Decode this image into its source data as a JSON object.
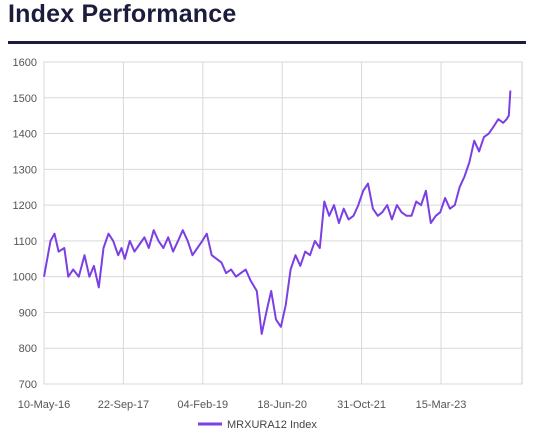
{
  "header": {
    "title": "Index Performance"
  },
  "chart_data": {
    "type": "line",
    "ylim": [
      700,
      1600
    ],
    "y_ticks": [
      "1600",
      "1500",
      "1400",
      "1300",
      "1200",
      "1100",
      "1000",
      "900",
      "800",
      "700"
    ],
    "x_ticks": [
      "10-May-16",
      "22-Sep-17",
      "04-Feb-19",
      "18-Jun-20",
      "31-Oct-21",
      "15-Mar-23"
    ],
    "grid": true,
    "legend_position": "bottom",
    "accent_color": "#7b3fe4",
    "series": [
      {
        "name": "MRXURA12 Index",
        "color": "#7b3fe4",
        "x": [
          "10-May-16",
          "20-Jun-16",
          "15-Jul-16",
          "10-Aug-16",
          "15-Sep-16",
          "10-Oct-16",
          "10-Nov-16",
          "15-Dec-16",
          "20-Jan-17",
          "20-Feb-17",
          "20-Mar-17",
          "20-Apr-17",
          "20-May-17",
          "20-Jun-17",
          "20-Jul-17",
          "20-Aug-17",
          "10-Sep-17",
          "01-Oct-17",
          "01-Nov-17",
          "01-Dec-17",
          "01-Jan-18",
          "01-Feb-18",
          "01-Mar-18",
          "01-Apr-18",
          "01-May-18",
          "01-Jun-18",
          "01-Jul-18",
          "01-Aug-18",
          "01-Sep-18",
          "01-Oct-18",
          "01-Nov-18",
          "01-Dec-18",
          "01-Jan-19",
          "01-Feb-19",
          "01-Mar-19",
          "01-Apr-19",
          "01-May-19",
          "01-Jun-19",
          "01-Jul-19",
          "01-Aug-19",
          "01-Sep-19",
          "01-Oct-19",
          "01-Nov-19",
          "01-Dec-19",
          "10-Jan-20",
          "10-Feb-20",
          "10-Mar-20",
          "20-Mar-20",
          "10-Apr-20",
          "10-May-20",
          "10-Jun-20",
          "10-Jul-20",
          "10-Aug-20",
          "10-Sep-20",
          "10-Oct-20",
          "10-Nov-20",
          "10-Dec-20",
          "10-Jan-21",
          "10-Feb-21",
          "10-Mar-21",
          "10-Apr-21",
          "10-May-21",
          "10-Jun-21",
          "10-Jul-21",
          "10-Aug-21",
          "10-Sep-21",
          "10-Oct-21",
          "10-Nov-21",
          "10-Dec-21",
          "10-Jan-22",
          "10-Feb-22",
          "10-Mar-22",
          "10-Apr-22",
          "10-May-22",
          "10-Jun-22",
          "10-Jul-22",
          "10-Aug-22",
          "10-Sep-22",
          "10-Oct-22",
          "10-Nov-22",
          "10-Dec-22",
          "10-Jan-23",
          "10-Feb-23",
          "10-Mar-23",
          "10-Apr-23",
          "10-May-23",
          "10-Jun-23",
          "10-Jul-23",
          "10-Aug-23",
          "10-Sep-23",
          "10-Oct-23",
          "10-Nov-23",
          "10-Dec-23",
          "10-Jan-24",
          "10-Feb-24",
          "10-Mar-24",
          "10-Apr-24",
          "01-May-24",
          "15-May-24",
          "25-May-24"
        ],
        "values": [
          1000,
          1100,
          1120,
          1070,
          1080,
          1000,
          1020,
          1000,
          1060,
          1000,
          1030,
          970,
          1080,
          1120,
          1100,
          1060,
          1080,
          1050,
          1100,
          1070,
          1090,
          1110,
          1080,
          1130,
          1100,
          1080,
          1110,
          1070,
          1100,
          1130,
          1100,
          1060,
          1080,
          1100,
          1120,
          1060,
          1050,
          1040,
          1010,
          1020,
          1000,
          1010,
          1020,
          990,
          960,
          840,
          900,
          920,
          960,
          880,
          860,
          920,
          1020,
          1060,
          1030,
          1070,
          1060,
          1100,
          1080,
          1210,
          1170,
          1200,
          1150,
          1190,
          1160,
          1170,
          1200,
          1240,
          1260,
          1190,
          1170,
          1180,
          1200,
          1160,
          1200,
          1180,
          1170,
          1170,
          1210,
          1200,
          1240,
          1150,
          1170,
          1180,
          1220,
          1190,
          1200,
          1250,
          1280,
          1320,
          1380,
          1350,
          1390,
          1400,
          1420,
          1440,
          1430,
          1440,
          1450,
          1520
        ]
      }
    ]
  }
}
